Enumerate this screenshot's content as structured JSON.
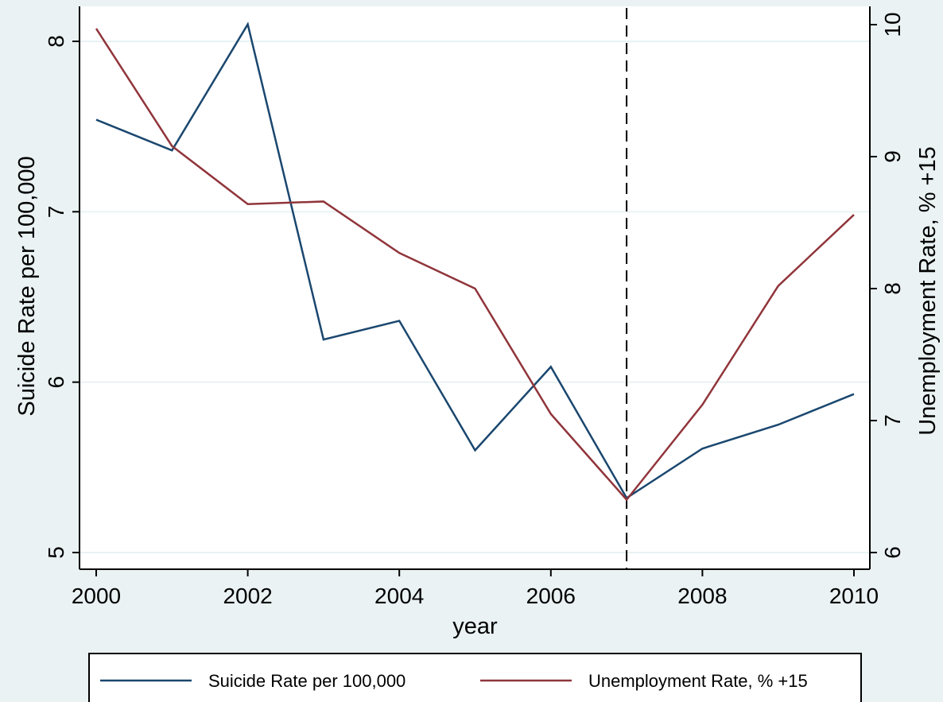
{
  "chart_data": {
    "type": "line",
    "x": [
      2000,
      2001,
      2002,
      2003,
      2004,
      2005,
      2006,
      2007,
      2008,
      2009,
      2010
    ],
    "xlabel": "year",
    "xticks": [
      2000,
      2002,
      2004,
      2006,
      2008,
      2010
    ],
    "xlim": [
      2000,
      2010
    ],
    "ylabel": "Suicide Rate per 100,000",
    "ylim": [
      5,
      8
    ],
    "yticks": [
      5,
      6,
      7,
      8
    ],
    "y2label": "Unemployment Rate, % +15",
    "y2lim": [
      6,
      10
    ],
    "y2ticks": [
      6,
      7,
      8,
      9,
      10
    ],
    "grid": true,
    "legend_position": "bottom",
    "vline": 2007,
    "series": [
      {
        "name": "Suicide Rate per 100,000",
        "axis": "left",
        "color": "#1a476f",
        "values": [
          7.54,
          7.36,
          8.1,
          6.25,
          6.36,
          5.6,
          6.09,
          5.32,
          5.61,
          5.75,
          5.93
        ]
      },
      {
        "name": "Unemployment Rate, % +15",
        "axis": "right",
        "color": "#90353b",
        "values": [
          9.97,
          9.08,
          8.64,
          8.66,
          8.27,
          8.0,
          7.05,
          6.4,
          7.12,
          8.02,
          8.56
        ]
      }
    ]
  }
}
